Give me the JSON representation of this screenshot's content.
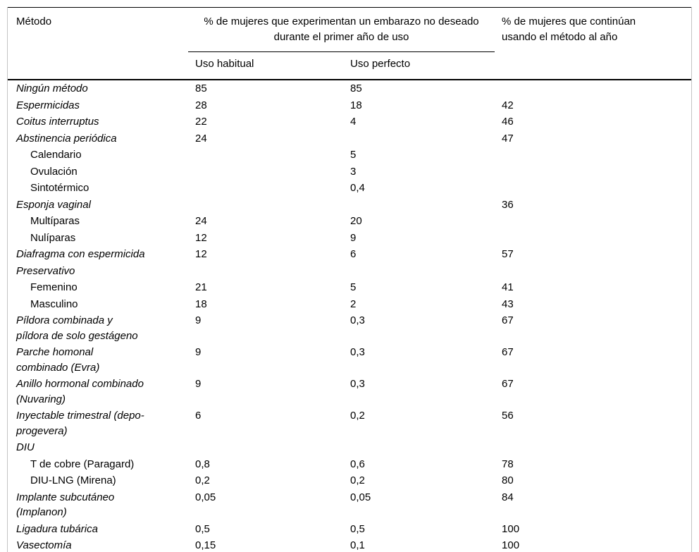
{
  "page": {
    "background_color": "#ffffff",
    "frame_color": "#c4c4c4",
    "rule_color": "#000000",
    "text_color": "#000000"
  },
  "table": {
    "headers": {
      "method": "Método",
      "pregnancy_group": "% de mujeres que experimentan un embarazo no deseado durante el primer año de uso",
      "typical_use": "Uso habitual",
      "perfect_use": "Uso perfecto",
      "continuation": "% de mujeres que continúan usando el método al año"
    },
    "rows": [
      {
        "method": "Ningún método",
        "sub": false,
        "typical": "85",
        "perfect": "85",
        "continuation": ""
      },
      {
        "method": "Espermicidas",
        "sub": false,
        "typical": "28",
        "perfect": "18",
        "continuation": "42"
      },
      {
        "method": "Coitus interruptus",
        "sub": false,
        "typical": "22",
        "perfect": "4",
        "continuation": "46"
      },
      {
        "method": "Abstinencia periódica",
        "sub": false,
        "typical": "24",
        "perfect": "",
        "continuation": "47"
      },
      {
        "method": "Calendario",
        "sub": true,
        "typical": "",
        "perfect": "5",
        "continuation": ""
      },
      {
        "method": "Ovulación",
        "sub": true,
        "typical": "",
        "perfect": "3",
        "continuation": ""
      },
      {
        "method": "Sintotérmico",
        "sub": true,
        "typical": "",
        "perfect": "0,4",
        "continuation": ""
      },
      {
        "method": "Esponja vaginal",
        "sub": false,
        "typical": "",
        "perfect": "",
        "continuation": "36"
      },
      {
        "method": "Multíparas",
        "sub": true,
        "typical": "24",
        "perfect": "20",
        "continuation": ""
      },
      {
        "method": "Nulíparas",
        "sub": true,
        "typical": "12",
        "perfect": "9",
        "continuation": ""
      },
      {
        "method": "Diafragma con espermicida",
        "sub": false,
        "typical": "12",
        "perfect": "6",
        "continuation": "57"
      },
      {
        "method": "Preservativo",
        "sub": false,
        "typical": "",
        "perfect": "",
        "continuation": ""
      },
      {
        "method": "Femenino",
        "sub": true,
        "typical": "21",
        "perfect": "5",
        "continuation": "41"
      },
      {
        "method": "Masculino",
        "sub": true,
        "typical": "18",
        "perfect": "2",
        "continuation": "43"
      },
      {
        "method": "Píldora combinada y píldora de solo gestágeno",
        "sub": false,
        "typical": "9",
        "perfect": "0,3",
        "continuation": "67"
      },
      {
        "method": "Parche homonal combinado (Evra)",
        "sub": false,
        "typical": "9",
        "perfect": "0,3",
        "continuation": "67"
      },
      {
        "method": "Anillo hormonal combinado (Nuvaring)",
        "sub": false,
        "typical": "9",
        "perfect": "0,3",
        "continuation": "67"
      },
      {
        "method": "Inyectable trimestral (depo-progevera)",
        "sub": false,
        "typical": "6",
        "perfect": "0,2",
        "continuation": "56"
      },
      {
        "method": "DIU",
        "sub": false,
        "typical": "",
        "perfect": "",
        "continuation": ""
      },
      {
        "method": "T de cobre (Paragard)",
        "sub": true,
        "typical": "0,8",
        "perfect": "0,6",
        "continuation": "78"
      },
      {
        "method": "DIU-LNG (Mirena)",
        "sub": true,
        "typical": "0,2",
        "perfect": "0,2",
        "continuation": "80"
      },
      {
        "method": "Implante subcutáneo (Implanon)",
        "sub": false,
        "typical": "0,05",
        "perfect": "0,05",
        "continuation": "84"
      },
      {
        "method": "Ligadura tubárica",
        "sub": false,
        "typical": "0,5",
        "perfect": "0,5",
        "continuation": "100"
      },
      {
        "method": "Vasectomía",
        "sub": false,
        "typical": "0,15",
        "perfect": "0,1",
        "continuation": "100"
      }
    ]
  }
}
